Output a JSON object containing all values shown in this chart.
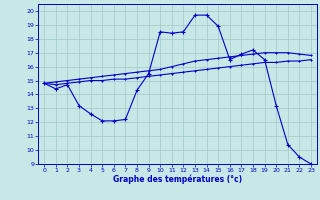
{
  "xlabel": "Graphe des températures (°c)",
  "bg_color": "#c8e8e8",
  "line_color": "#0000cc",
  "grid_color": "#a0c8c8",
  "xlim": [
    -0.5,
    23.5
  ],
  "ylim": [
    9,
    20.5
  ],
  "xticks": [
    0,
    1,
    2,
    3,
    4,
    5,
    6,
    7,
    8,
    9,
    10,
    11,
    12,
    13,
    14,
    15,
    16,
    17,
    18,
    19,
    20,
    21,
    22,
    23
  ],
  "yticks": [
    9,
    10,
    11,
    12,
    13,
    14,
    15,
    16,
    17,
    18,
    19,
    20
  ],
  "series": [
    {
      "x": [
        0,
        1,
        2,
        3,
        4,
        5,
        6,
        7,
        8,
        9,
        10,
        11,
        12,
        13,
        14,
        15,
        16,
        17,
        18,
        19,
        20,
        21,
        22,
        23
      ],
      "y": [
        14.8,
        14.4,
        14.7,
        13.2,
        12.6,
        12.1,
        12.1,
        12.2,
        14.3,
        15.5,
        18.5,
        18.4,
        18.5,
        19.7,
        19.7,
        18.9,
        16.5,
        16.9,
        17.2,
        16.5,
        13.2,
        10.4,
        9.5,
        9.0
      ],
      "marker": "+",
      "markersize": 3,
      "linewidth": 0.8
    },
    {
      "x": [
        0,
        1,
        2,
        3,
        4,
        5,
        6,
        7,
        8,
        9,
        10,
        11,
        12,
        13,
        14,
        15,
        16,
        17,
        18,
        19,
        20,
        21,
        22,
        23
      ],
      "y": [
        14.8,
        14.7,
        14.8,
        14.9,
        15.0,
        15.0,
        15.1,
        15.1,
        15.2,
        15.3,
        15.4,
        15.5,
        15.6,
        15.7,
        15.8,
        15.9,
        16.0,
        16.1,
        16.2,
        16.3,
        16.3,
        16.4,
        16.4,
        16.5
      ],
      "marker": "+",
      "markersize": 2,
      "linewidth": 0.8
    },
    {
      "x": [
        0,
        1,
        2,
        3,
        4,
        5,
        6,
        7,
        8,
        9,
        10,
        11,
        12,
        13,
        14,
        15,
        16,
        17,
        18,
        19,
        20,
        21,
        22,
        23
      ],
      "y": [
        14.8,
        14.9,
        15.0,
        15.1,
        15.2,
        15.3,
        15.4,
        15.5,
        15.6,
        15.7,
        15.8,
        16.0,
        16.2,
        16.4,
        16.5,
        16.6,
        16.7,
        16.8,
        16.9,
        17.0,
        17.0,
        17.0,
        16.9,
        16.8
      ],
      "marker": "+",
      "markersize": 2,
      "linewidth": 0.8
    }
  ]
}
